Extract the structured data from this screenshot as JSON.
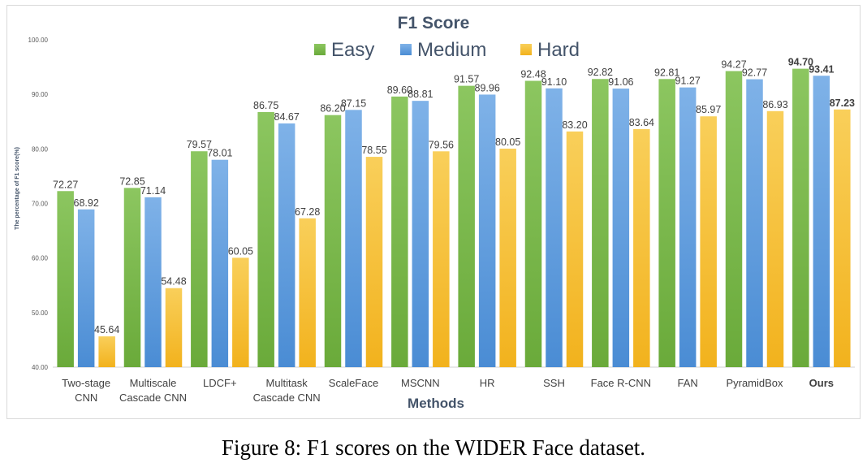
{
  "chart_data": {
    "type": "bar",
    "title": "F1 Score",
    "xlabel": "Methods",
    "ylabel": "The percentage of F1 score(%)",
    "ylim": [
      40,
      100
    ],
    "yticks": [
      "40.00",
      "50.00",
      "60.00",
      "70.00",
      "80.00",
      "90.00",
      "100.00"
    ],
    "legend_position": "top",
    "categories": [
      [
        "Two-stage",
        "CNN"
      ],
      [
        "Multiscale",
        "Cascade CNN"
      ],
      [
        "LDCF+"
      ],
      [
        "Multitask",
        "Cascade CNN"
      ],
      [
        "ScaleFace"
      ],
      [
        "MSCNN"
      ],
      [
        "HR"
      ],
      [
        "SSH"
      ],
      [
        "Face R-CNN"
      ],
      [
        "FAN"
      ],
      [
        "PyramidBox"
      ],
      [
        "Ours"
      ]
    ],
    "highlight_category": 11,
    "series": [
      {
        "name": "Easy",
        "color": "#6aaa3a",
        "color_light": "#8cc660",
        "values": [
          72.27,
          72.85,
          79.57,
          86.75,
          86.2,
          89.6,
          91.57,
          92.48,
          92.82,
          92.81,
          94.27,
          94.7
        ],
        "labels": [
          "72.27",
          "72.85",
          "79.57",
          "86.75",
          "86.20",
          "89.60",
          "91.57",
          "92.48",
          "92.82",
          "92.81",
          "94.27",
          "94.70"
        ]
      },
      {
        "name": "Medium",
        "color": "#4a8cd4",
        "color_light": "#7fb2e8",
        "values": [
          68.92,
          71.14,
          78.01,
          84.67,
          87.15,
          88.81,
          89.96,
          91.1,
          91.06,
          91.27,
          92.77,
          93.41
        ],
        "labels": [
          "68.92",
          "71.14",
          "78.01",
          "84.67",
          "87.15",
          "88.81",
          "89.96",
          "91.10",
          "91.06",
          "91.27",
          "92.77",
          "93.41"
        ]
      },
      {
        "name": "Hard",
        "color": "#f2b21d",
        "color_light": "#f9cf5a",
        "values": [
          45.64,
          54.48,
          60.05,
          67.28,
          78.55,
          79.56,
          80.05,
          83.2,
          83.64,
          85.97,
          86.93,
          87.23
        ],
        "labels": [
          "45.64",
          "54.48",
          "60.05",
          "67.28",
          "78.55",
          "79.56",
          "80.05",
          "83.20",
          "83.64",
          "85.97",
          "86.93",
          "87.23"
        ]
      }
    ]
  },
  "caption": "Figure 8: F1 scores on the WIDER Face dataset."
}
